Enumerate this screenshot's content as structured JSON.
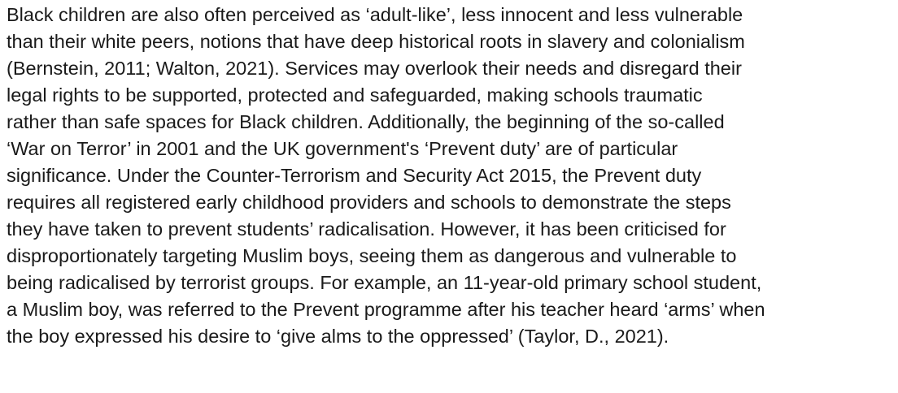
{
  "paragraph": {
    "lines": [
      "Black children are also often perceived as ‘adult-like’, less innocent and less vulnerable",
      "than their white peers, notions that have deep historical roots in slavery and colonialism",
      "(Bernstein, 2011; Walton, 2021). Services may overlook their needs and disregard their",
      "legal rights to be supported, protected and safeguarded, making schools traumatic",
      "rather than safe spaces for Black children. Additionally, the beginning of the so-called",
      "‘War on Terror’ in 2001 and the UK government's ‘Prevent duty’ are of particular",
      "significance. Under the Counter-Terrorism and Security Act 2015, the Prevent duty",
      "requires all registered early childhood providers and schools to demonstrate the steps",
      "they have taken to prevent students’ radicalisation. However, it has been criticised for",
      "disproportionately targeting Muslim boys, seeing them as dangerous and vulnerable to",
      "being radicalised by terrorist groups. For example, an 11-year-old primary school student,",
      "a Muslim boy, was referred to the Prevent programme after his teacher heard ‘arms’ when",
      "the boy expressed his desire to ‘give alms to the oppressed’ (Taylor, D., 2021)."
    ]
  }
}
